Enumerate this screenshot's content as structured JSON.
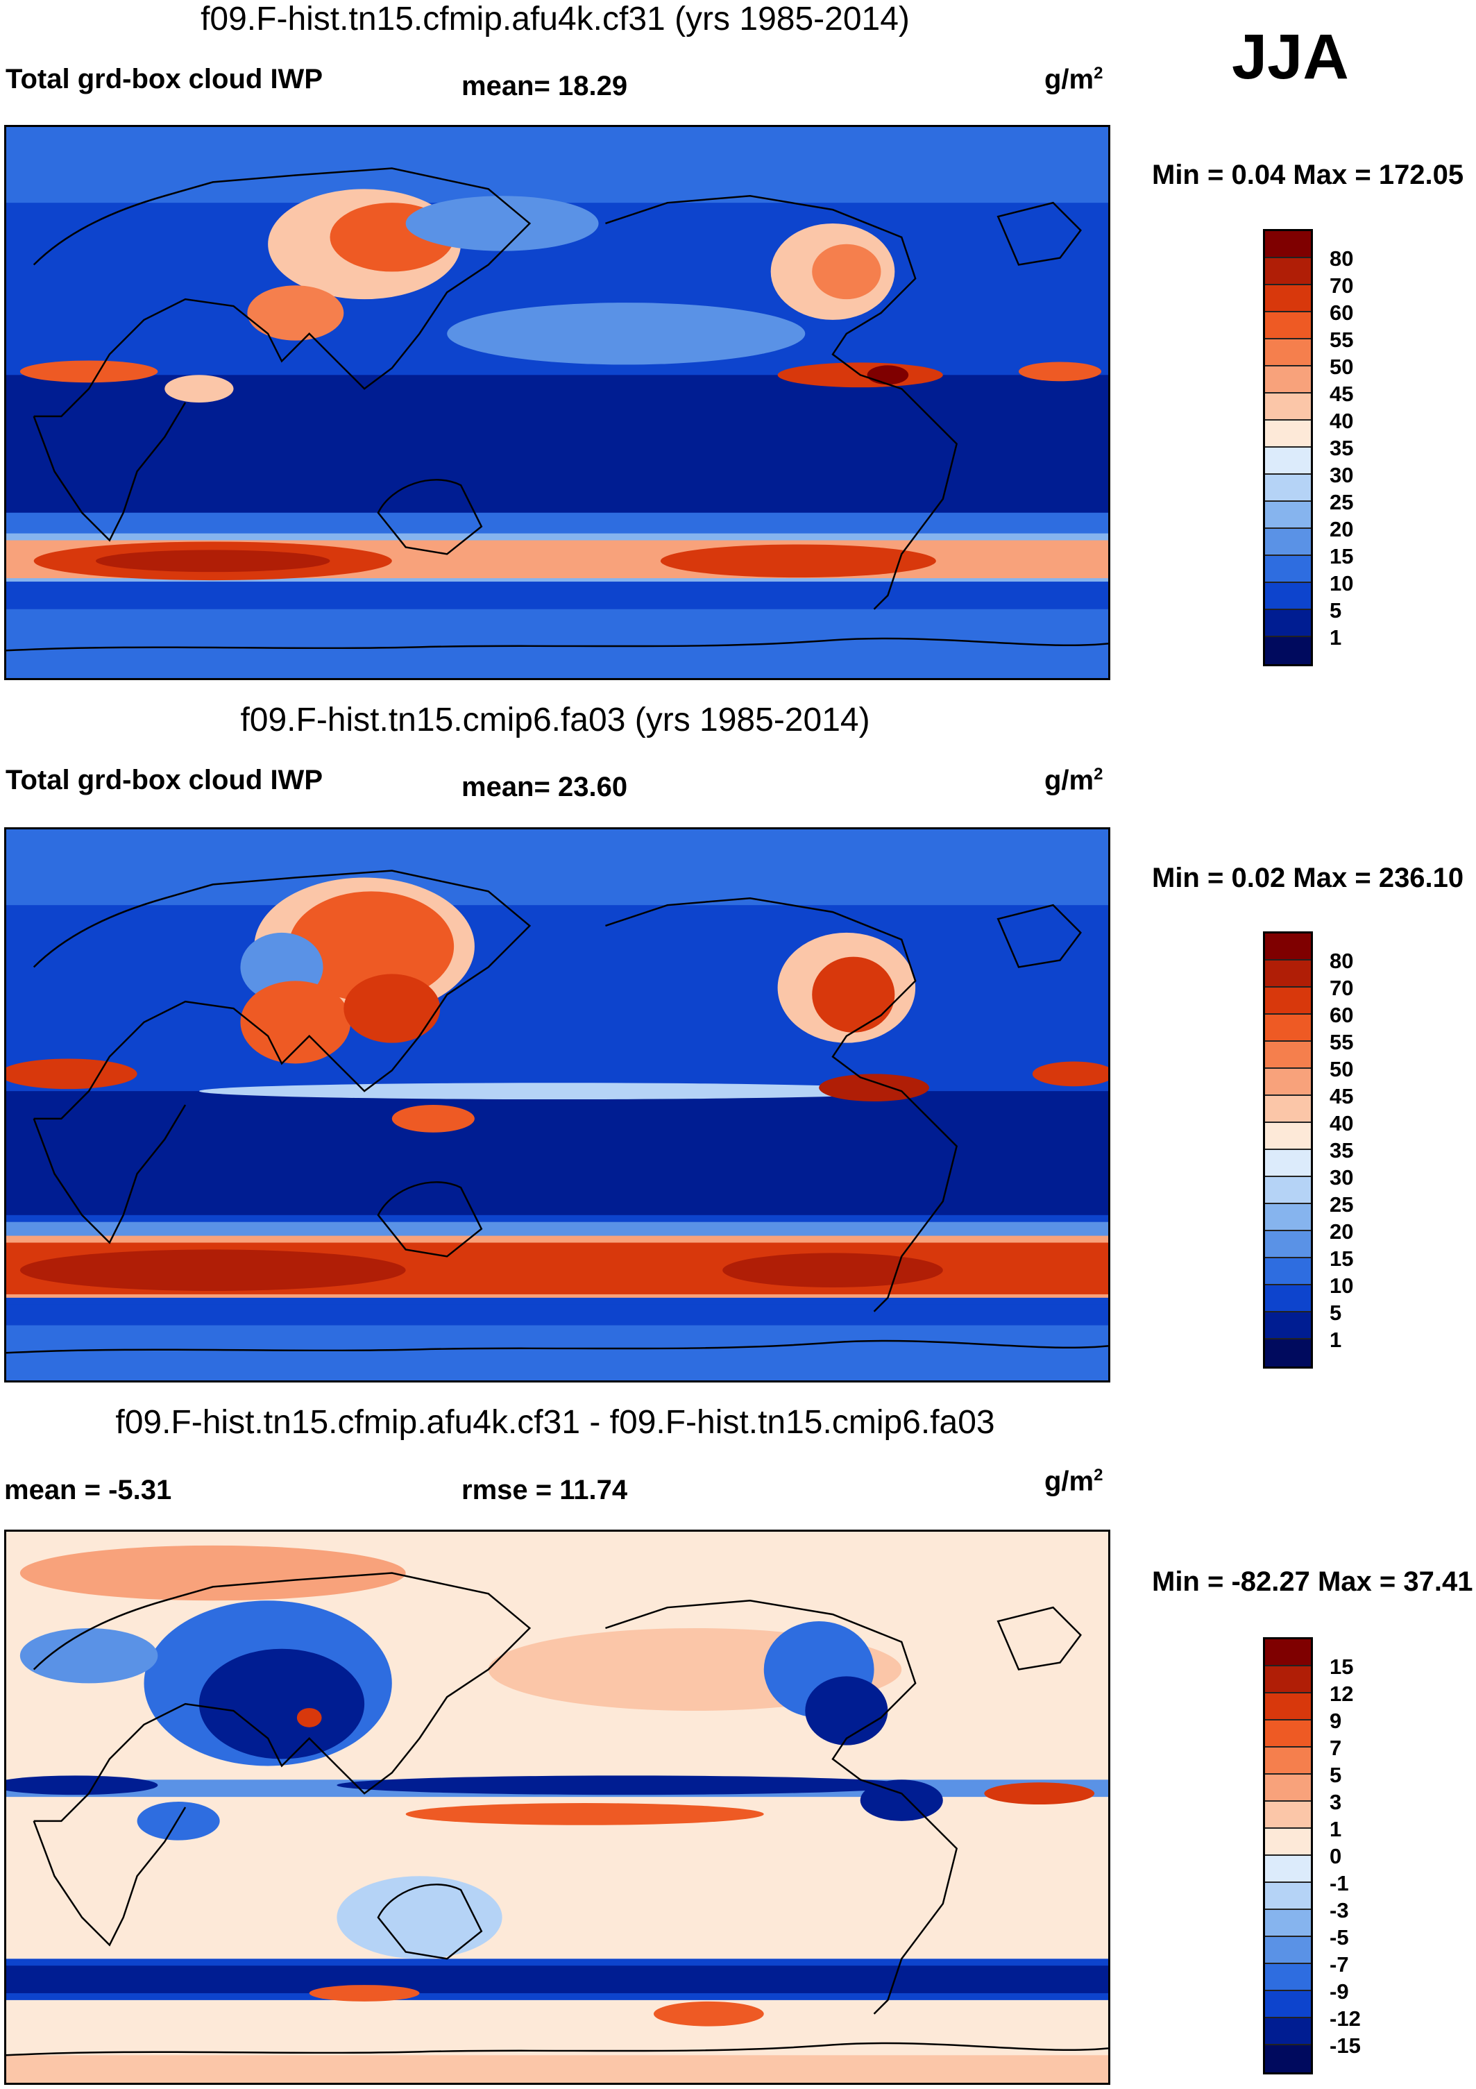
{
  "season": "JJA",
  "panels": [
    {
      "title": "f09.F-hist.tn15.cfmip.afu4k.cf31 (yrs 1985-2014)",
      "left_label": "Total grd-box cloud IWP",
      "center_label": "mean=  18.29",
      "units_base": "g/m",
      "units_exp": "2",
      "minmax": "Min =   0.04 Max = 172.05",
      "levels": [
        "80",
        "70",
        "60",
        "55",
        "50",
        "45",
        "40",
        "35",
        "30",
        "25",
        "20",
        "15",
        "10",
        "5",
        "1"
      ]
    },
    {
      "title": "f09.F-hist.tn15.cmip6.fa03 (yrs 1985-2014)",
      "left_label": "Total grd-box cloud IWP",
      "center_label": "mean=  23.60",
      "units_base": "g/m",
      "units_exp": "2",
      "minmax": "Min =   0.02 Max = 236.10",
      "levels": [
        "80",
        "70",
        "60",
        "55",
        "50",
        "45",
        "40",
        "35",
        "30",
        "25",
        "20",
        "15",
        "10",
        "5",
        "1"
      ]
    },
    {
      "title": "f09.F-hist.tn15.cfmip.afu4k.cf31 - f09.F-hist.tn15.cmip6.fa03",
      "left_label": "mean =  -5.31",
      "center_label": "rmse =  11.74",
      "units_base": "g/m",
      "units_exp": "2",
      "minmax": "Min = -82.27 Max =  37.41",
      "levels": [
        "15",
        "12",
        "9",
        "7",
        "5",
        "3",
        "1",
        "0",
        "-1",
        "-3",
        "-5",
        "-7",
        "-9",
        "-12",
        "-15"
      ]
    }
  ],
  "colors": {
    "abs_scale": [
      "#7f0000",
      "#b01e06",
      "#d8380c",
      "#ee5a24",
      "#f57f4d",
      "#f8a27b",
      "#fbc6a8",
      "#fde9d8",
      "#dcebfb",
      "#b5d3f6",
      "#86b4ee",
      "#5a92e6",
      "#2e6de0",
      "#0d44cd",
      "#001d92",
      "#000a5e"
    ],
    "diff_scale": [
      "#7f0000",
      "#b01e06",
      "#d8380c",
      "#ee5a24",
      "#f57f4d",
      "#f8a27b",
      "#fbc6a8",
      "#fde9d8",
      "#fde9d8",
      "#dcebfb",
      "#b5d3f6",
      "#86b4ee",
      "#5a92e6",
      "#2e6de0",
      "#0d44cd",
      "#001d92"
    ]
  }
}
